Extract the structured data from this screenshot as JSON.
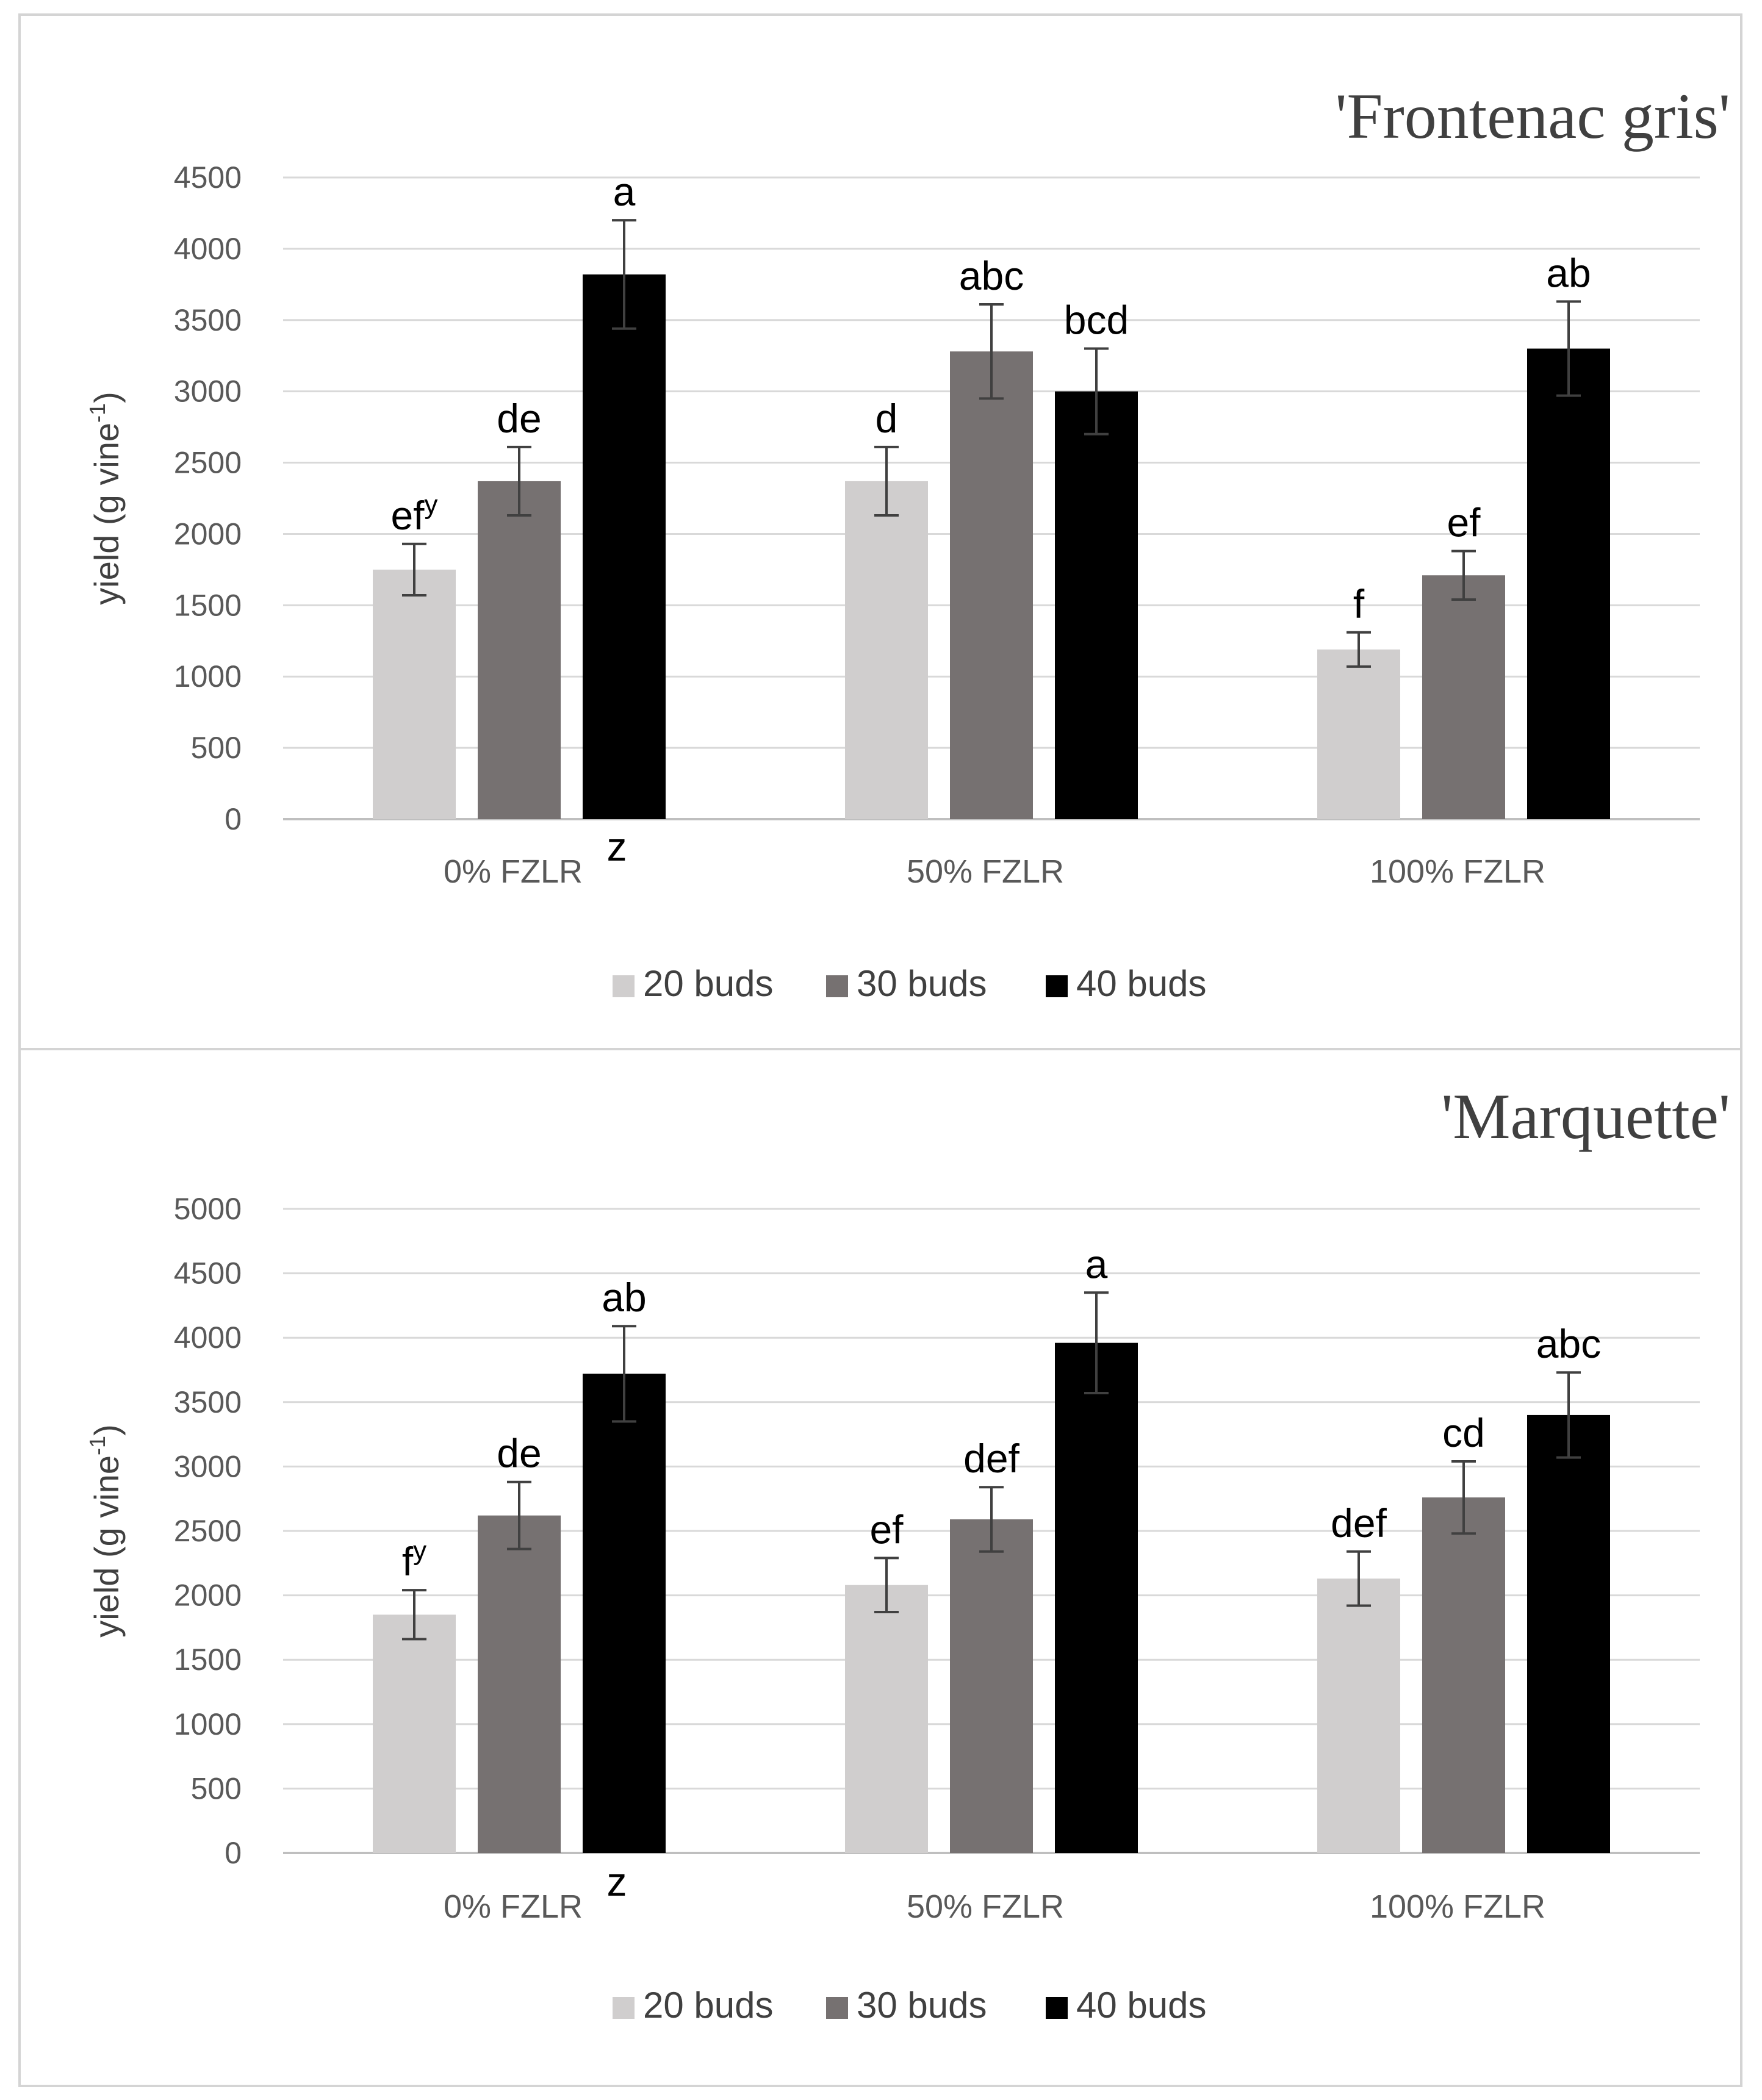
{
  "colors": {
    "gridline": "#d9d9d9",
    "axis": "#bfbfbf",
    "error_bar": "#404040",
    "series": [
      "#d0cece",
      "#767171",
      "#000000"
    ]
  },
  "chart_data": [
    {
      "type": "bar",
      "title": "'Frontenac gris'",
      "ylabel": "yield (g vine",
      "ylabel_sup": "-1",
      "ylabel_close": ")",
      "ylim": [
        0,
        4500
      ],
      "ytick_step": 500,
      "categories": [
        "0% FZLR",
        "50% FZLR",
        "100% FZLR"
      ],
      "category_footnote": "z",
      "series": [
        {
          "name": "20 buds",
          "values": [
            1750,
            2370,
            1190
          ],
          "errors": [
            180,
            240,
            120
          ],
          "letters": [
            "ef",
            "d",
            "f"
          ],
          "letter_sup": [
            "y",
            "",
            ""
          ]
        },
        {
          "name": "30 buds",
          "values": [
            2370,
            3280,
            1710
          ],
          "errors": [
            240,
            330,
            170
          ],
          "letters": [
            "de",
            "abc",
            "ef"
          ],
          "letter_sup": [
            "",
            "",
            ""
          ]
        },
        {
          "name": "40 buds",
          "values": [
            3820,
            3000,
            3300
          ],
          "errors": [
            380,
            300,
            330
          ],
          "letters": [
            "a",
            "bcd",
            "ab"
          ],
          "letter_sup": [
            "",
            "",
            ""
          ]
        }
      ],
      "legend": [
        "20 buds",
        "30 buds",
        "40 buds"
      ]
    },
    {
      "type": "bar",
      "title": "'Marquette'",
      "ylabel": "yield (g vine",
      "ylabel_sup": "-1",
      "ylabel_close": ")",
      "ylim": [
        0,
        5000
      ],
      "ytick_step": 500,
      "categories": [
        "0% FZLR",
        "50% FZLR",
        "100% FZLR"
      ],
      "category_footnote": "z",
      "series": [
        {
          "name": "20 buds",
          "values": [
            1850,
            2080,
            2130
          ],
          "errors": [
            190,
            210,
            210
          ],
          "letters": [
            "f",
            "ef",
            "def"
          ],
          "letter_sup": [
            "y",
            "",
            ""
          ]
        },
        {
          "name": "30 buds",
          "values": [
            2620,
            2590,
            2760
          ],
          "errors": [
            260,
            250,
            280
          ],
          "letters": [
            "de",
            "def",
            "cd"
          ],
          "letter_sup": [
            "",
            "",
            ""
          ]
        },
        {
          "name": "40 buds",
          "values": [
            3720,
            3960,
            3400
          ],
          "errors": [
            370,
            390,
            330
          ],
          "letters": [
            "ab",
            "a",
            "abc"
          ],
          "letter_sup": [
            "",
            "",
            ""
          ]
        }
      ],
      "legend": [
        "20 buds",
        "30 buds",
        "40 buds"
      ]
    }
  ]
}
